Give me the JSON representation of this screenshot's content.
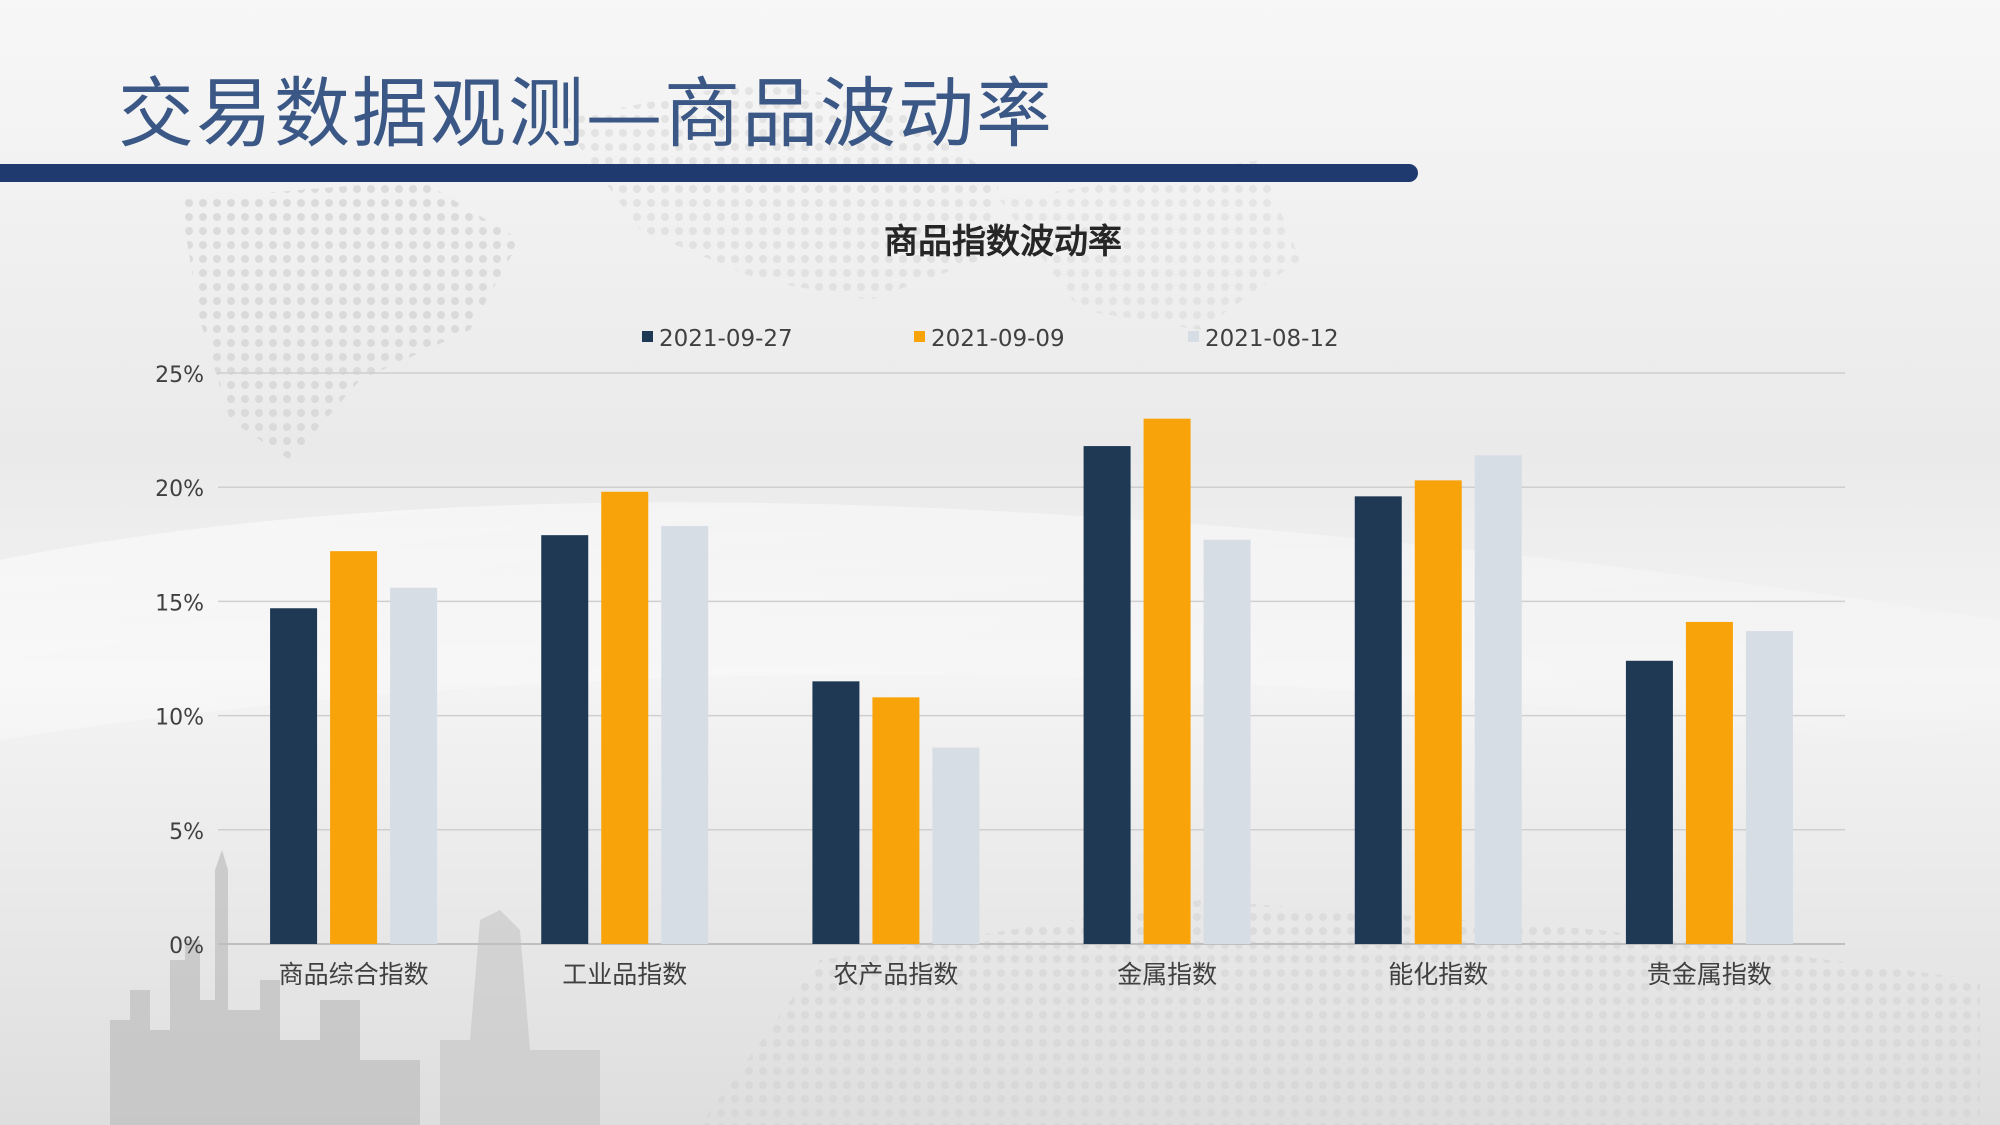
{
  "slide": {
    "title": "交易数据观测—商品波动率"
  },
  "colors": {
    "series": [
      "#1f3955",
      "#f9a30a",
      "#d7dde5"
    ],
    "title_bar": "#1f3a6e",
    "title_text": "#3a5785",
    "grid": "#cfcfcf",
    "axis_text": "#404040"
  },
  "chart_data": {
    "type": "bar",
    "title": "商品指数波动率",
    "categories": [
      "商品综合指数",
      "工业品指数",
      "农产品指数",
      "金属指数",
      "能化指数",
      "贵金属指数"
    ],
    "series": [
      {
        "name": "2021-09-27",
        "values": [
          14.7,
          17.9,
          11.5,
          21.8,
          19.6,
          12.4
        ]
      },
      {
        "name": "2021-09-09",
        "values": [
          17.2,
          19.8,
          10.8,
          23.0,
          20.3,
          14.1
        ]
      },
      {
        "name": "2021-08-12",
        "values": [
          15.6,
          18.3,
          8.6,
          17.7,
          21.4,
          13.7
        ]
      }
    ],
    "ylim": [
      0,
      25
    ],
    "yticks": [
      "0%",
      "5%",
      "10%",
      "15%",
      "20%",
      "25%"
    ],
    "ytick_values": [
      0,
      5,
      10,
      15,
      20,
      25
    ],
    "grid": true,
    "legend": "top-center",
    "xlabel": "",
    "ylabel": ""
  }
}
